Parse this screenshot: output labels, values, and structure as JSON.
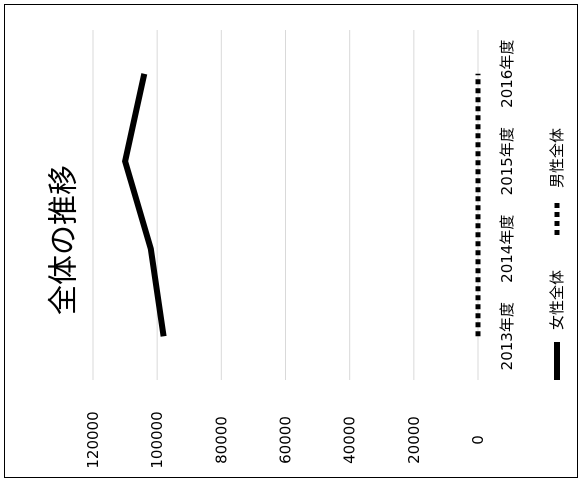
{
  "chart_data": {
    "type": "line",
    "title": "全体の推移",
    "categories": [
      "2013年度",
      "2014年度",
      "2015年度",
      "2016年度"
    ],
    "series": [
      {
        "name": "女性全体",
        "values": [
          98000,
          102000,
          110000,
          104000
        ],
        "style": "solid",
        "color": "#000000"
      },
      {
        "name": "男性全体",
        "values": [
          0,
          0,
          0,
          0
        ],
        "style": "dotted",
        "color": "#000000"
      }
    ],
    "yticks": [
      "0",
      "20000",
      "40000",
      "60000",
      "80000",
      "100000",
      "120000"
    ],
    "ylim": [
      0,
      120000
    ],
    "grid": true,
    "legend": "bottom",
    "rotation": "rotated 90° counter-clockwise"
  }
}
